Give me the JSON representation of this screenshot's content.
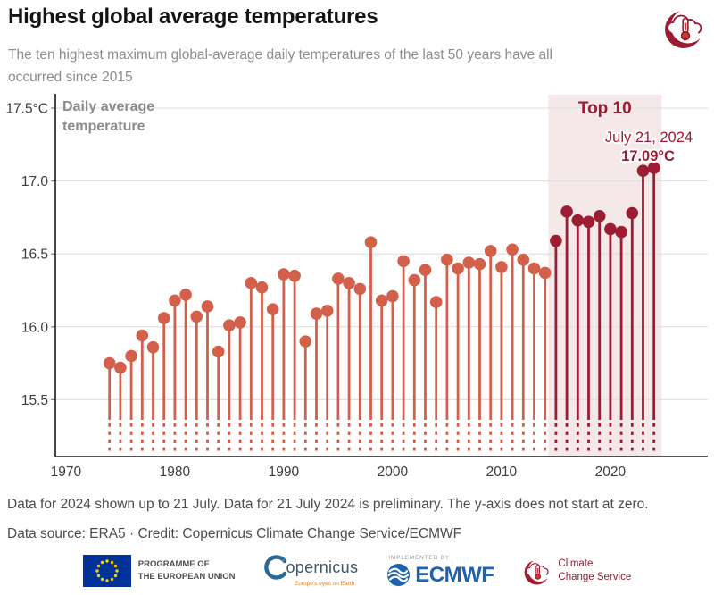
{
  "header": {
    "title": "Highest global average temperatures",
    "subtitle": "The ten highest maximum global-average daily temperatures of the last 50 years have all occurred since 2015"
  },
  "chart_data": {
    "type": "lollipop",
    "title": "Highest global average temperatures",
    "y_axis_title_lines": [
      "Daily average",
      "temperature"
    ],
    "y_unit": "°C",
    "y_ticks": [
      17.5,
      17.0,
      16.5,
      16.0,
      15.5
    ],
    "y_tick_labels": [
      "17.5°C",
      "17.0",
      "16.5",
      "16.0",
      "15.5"
    ],
    "x_ticks": [
      1970,
      1980,
      1990,
      2000,
      2010,
      2020
    ],
    "x_tick_labels": [
      "1970",
      "1980",
      "1990",
      "2000",
      "2010",
      "2020"
    ],
    "ylim_displayed": [
      15.1,
      17.6
    ],
    "xlim_displayed": [
      1969,
      2026
    ],
    "axis_break_note": "y-axis does not start at zero (stems drawn dashed below 15.4)",
    "grid": true,
    "years": [
      1974,
      1975,
      1976,
      1977,
      1978,
      1979,
      1980,
      1981,
      1982,
      1983,
      1984,
      1985,
      1986,
      1987,
      1988,
      1989,
      1990,
      1991,
      1992,
      1993,
      1994,
      1995,
      1996,
      1997,
      1998,
      1999,
      2000,
      2001,
      2002,
      2003,
      2004,
      2005,
      2006,
      2007,
      2008,
      2009,
      2010,
      2011,
      2012,
      2013,
      2014,
      2015,
      2016,
      2017,
      2018,
      2019,
      2020,
      2021,
      2022,
      2023,
      2024
    ],
    "values": [
      15.75,
      15.72,
      15.8,
      15.94,
      15.86,
      16.06,
      16.18,
      16.22,
      16.07,
      16.14,
      15.83,
      16.01,
      16.03,
      16.3,
      16.27,
      16.12,
      16.36,
      16.35,
      15.9,
      16.09,
      16.11,
      16.33,
      16.3,
      16.26,
      16.58,
      16.18,
      16.21,
      16.45,
      16.32,
      16.39,
      16.17,
      16.46,
      16.4,
      16.44,
      16.43,
      16.52,
      16.41,
      16.53,
      16.46,
      16.4,
      16.37,
      16.59,
      16.79,
      16.73,
      16.72,
      16.76,
      16.67,
      16.65,
      16.78,
      17.07,
      17.09
    ],
    "highlight": {
      "label": "Top 10",
      "from_year": 2015,
      "to_year": 2024
    },
    "annotation": {
      "line1": "July 21, 2024",
      "line2": "17.09°C"
    },
    "colors": {
      "dot": "#d2604a",
      "top10_dot": "#9c1c33",
      "band": "#f5e8e8",
      "grid": "#dcdcdc",
      "axis": "#1a1a1a",
      "accent_text": "#9c1c33"
    }
  },
  "footer": {
    "note": "Data for 2024 shown up to 21 July. Data for 21 July 2024 is preliminary. The y-axis does not start at zero.",
    "source": "Data source: ERA5 · Credit: Copernicus Climate Change Service/ECMWF"
  },
  "logos": {
    "eu": {
      "line1": "PROGRAMME OF",
      "line2": "THE EUROPEAN UNION"
    },
    "copernicus": {
      "name": "opernicus",
      "tagline": "Europe's eyes on Earth"
    },
    "ecmwf": {
      "implemented_by": "IMPLEMENTED BY",
      "name": "ECMWF"
    },
    "climate_change_service": {
      "line1": "Climate",
      "line2": "Change Service"
    }
  }
}
